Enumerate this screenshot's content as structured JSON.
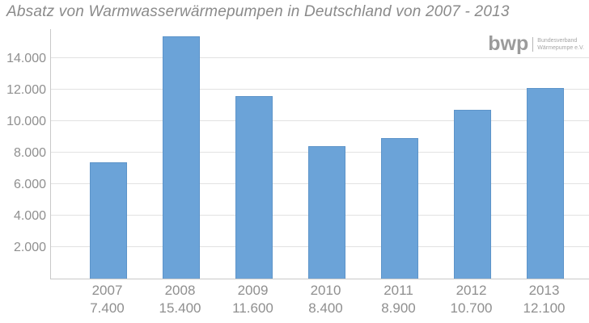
{
  "title": "Absatz von Warmwasserwärmepumpen in Deutschland von 2007 - 2013",
  "logo": {
    "wordmark": "bwp",
    "org_line1": "Bundesverband",
    "org_line2": "Wärmepumpe e.V."
  },
  "chart_data": {
    "type": "bar",
    "title": "Absatz von Warmwasserwärmepumpen in Deutschland von 2007 - 2013",
    "categories": [
      "2007",
      "2008",
      "2009",
      "2010",
      "2011",
      "2012",
      "2013"
    ],
    "values": [
      7400,
      15400,
      11600,
      8400,
      8900,
      10700,
      12100
    ],
    "value_labels": [
      "7.400",
      "15.400",
      "11.600",
      "8.400",
      "8.900",
      "10.700",
      "12.100"
    ],
    "y_ticks": [
      2000,
      4000,
      6000,
      8000,
      10000,
      12000,
      14000
    ],
    "y_tick_labels": [
      "2.000",
      "4.000",
      "6.000",
      "8.000",
      "10.000",
      "12.000",
      "14.000"
    ],
    "xlabel": "",
    "ylabel": "",
    "ylim": [
      0,
      15900
    ],
    "grid": true,
    "legend": "none",
    "colors": {
      "bar_fill": "#6ba3d8",
      "bar_border": "#5d94c9",
      "gridline": "#e2e2e2",
      "axis": "#c9c9c9",
      "text": "#8f8f8f",
      "title_text": "#8a8a8a"
    }
  }
}
